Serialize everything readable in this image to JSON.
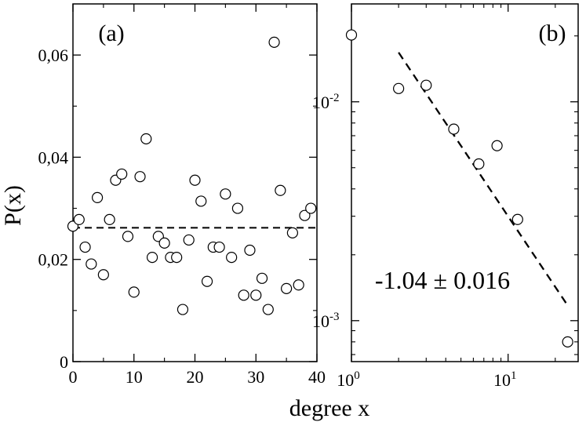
{
  "figure": {
    "xlabel": "degree x",
    "ylabel": "P(x)"
  },
  "chart_data": [
    {
      "type": "scatter",
      "panel_label": "(a)",
      "xlim": [
        0,
        40
      ],
      "ylim": [
        0,
        0.07
      ],
      "x_scale": "linear",
      "y_scale": "linear",
      "x_ticks": [
        0,
        10,
        20,
        30,
        40
      ],
      "x_tick_labels": [
        "0",
        "10",
        "20",
        "30",
        "40"
      ],
      "y_ticks": [
        0,
        0.02,
        0.04,
        0.06
      ],
      "y_tick_labels": [
        "0",
        "0,02",
        "0,04",
        "0,06"
      ],
      "grid": false,
      "series": [
        {
          "marker": "open-circle",
          "x": [
            0,
            1,
            2,
            3,
            4,
            5,
            6,
            7,
            8,
            9,
            10,
            11,
            12,
            13,
            14,
            15,
            16,
            17,
            18,
            19,
            20,
            21,
            22,
            23,
            24,
            25,
            26,
            27,
            28,
            29,
            30,
            31,
            32,
            33,
            34,
            35,
            36,
            37,
            38,
            39
          ],
          "y": [
            0.0265,
            0.0278,
            0.0224,
            0.0191,
            0.0321,
            0.017,
            0.0278,
            0.0355,
            0.0367,
            0.0245,
            0.0136,
            0.0362,
            0.0436,
            0.0204,
            0.0245,
            0.0232,
            0.0204,
            0.0204,
            0.0102,
            0.0238,
            0.0355,
            0.0314,
            0.0157,
            0.0224,
            0.0224,
            0.0328,
            0.0204,
            0.03,
            0.013,
            0.0218,
            0.013,
            0.0163,
            0.0102,
            0.0625,
            0.0335,
            0.0143,
            0.0252,
            0.015,
            0.0286,
            0.03
          ]
        },
        {
          "type": "line",
          "style": "dashed",
          "x": [
            0,
            40
          ],
          "y": [
            0.0262,
            0.0262
          ]
        }
      ]
    },
    {
      "type": "scatter",
      "panel_label": "(b)",
      "x_scale": "log",
      "y_scale": "log",
      "xlim": [
        1,
        28
      ],
      "ylim": [
        0.00065,
        0.028
      ],
      "x_ticks": [
        1,
        10
      ],
      "x_tick_labels": [
        {
          "base": "10",
          "exp": "0"
        },
        {
          "base": "10",
          "exp": "1"
        }
      ],
      "y_ticks": [
        0.001,
        0.01
      ],
      "y_tick_labels": [
        {
          "base": "10",
          "exp": "-3"
        },
        {
          "base": "10",
          "exp": "-2"
        }
      ],
      "grid": false,
      "annotation": "-1.04 ± 0.016",
      "series": [
        {
          "marker": "open-circle",
          "x": [
            1,
            2,
            3,
            4.5,
            6.5,
            8.5,
            11.5,
            24
          ],
          "y": [
            0.0202,
            0.0115,
            0.0119,
            0.0075,
            0.0052,
            0.0063,
            0.0029,
            0.0008
          ]
        },
        {
          "type": "line",
          "style": "dashed",
          "x": [
            2,
            23.5
          ],
          "y": [
            0.0168,
            0.0012
          ]
        }
      ]
    }
  ]
}
